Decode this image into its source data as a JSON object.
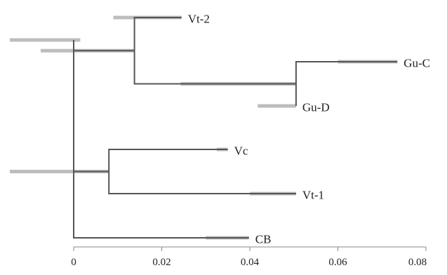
{
  "tree": {
    "axis": {
      "min": 0,
      "max": 0.08,
      "ticks": [
        {
          "value": 0,
          "label": "0"
        },
        {
          "value": 0.02,
          "label": "0.02"
        },
        {
          "value": 0.04,
          "label": "0.04"
        },
        {
          "value": 0.06,
          "label": "0.06"
        },
        {
          "value": 0.08,
          "label": "0.08"
        }
      ]
    },
    "nodes": [
      {
        "id": "root",
        "x": 0,
        "ci": [
          -0.0145,
          0.0015
        ]
      },
      {
        "id": "n1",
        "x": 0.0138,
        "ci": [
          -0.0075,
          0.0138
        ]
      },
      {
        "id": "n2",
        "x": 0.0505,
        "ci": [
          0.0243,
          0.0505
        ]
      },
      {
        "id": "n3",
        "x": 0.008,
        "ci": [
          -0.0145,
          0.008
        ]
      }
    ],
    "leaves": [
      {
        "id": "vt2",
        "label": "Vt-2",
        "x": 0.0245,
        "ci": [
          0.009,
          0.0245
        ]
      },
      {
        "id": "guc",
        "label": "Gu-C",
        "x": 0.0735,
        "ci": [
          0.06,
          0.0735
        ]
      },
      {
        "id": "gud",
        "label": "Gu-D",
        "x": 0.0505,
        "ci": [
          0.0418,
          0.0505
        ]
      },
      {
        "id": "vc",
        "label": "Vc",
        "x": 0.035,
        "ci": [
          0.0325,
          0.035
        ]
      },
      {
        "id": "vt1",
        "label": "Vt-1",
        "x": 0.0505,
        "ci": [
          0.04,
          0.0505
        ]
      },
      {
        "id": "cb",
        "label": "CB",
        "x": 0.0398,
        "ci": [
          0.03,
          0.0398
        ]
      }
    ],
    "edges": [
      {
        "parent": "root",
        "child": "n1"
      },
      {
        "parent": "root",
        "child": "n3"
      },
      {
        "parent": "root",
        "child": "cb"
      },
      {
        "parent": "n1",
        "child": "vt2"
      },
      {
        "parent": "n1",
        "child": "n2"
      },
      {
        "parent": "n2",
        "child": "guc"
      },
      {
        "parent": "n2",
        "child": "gud"
      },
      {
        "parent": "n3",
        "child": "vc"
      },
      {
        "parent": "n3",
        "child": "vt1"
      }
    ]
  }
}
